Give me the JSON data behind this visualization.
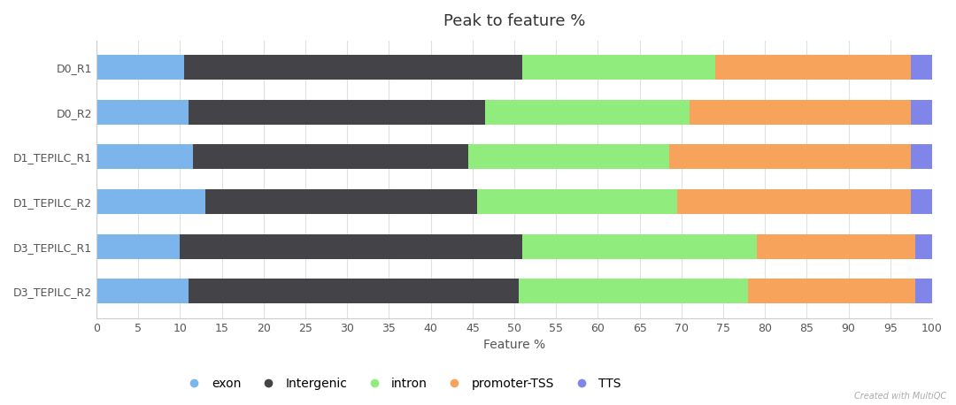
{
  "title": "Peak to feature %",
  "xlabel": "Feature %",
  "categories": [
    "D0_R1",
    "D0_R2",
    "D1_TEPILC_R1",
    "D1_TEPILC_R2",
    "D3_TEPILC_R1",
    "D3_TEPILC_R2"
  ],
  "segments": {
    "exon": [
      10.5,
      11.0,
      11.5,
      13.0,
      10.0,
      11.0
    ],
    "Intergenic": [
      40.5,
      35.5,
      33.0,
      32.5,
      41.0,
      39.5
    ],
    "intron": [
      23.0,
      24.5,
      24.0,
      24.0,
      28.0,
      27.5
    ],
    "promoter-TSS": [
      23.5,
      26.5,
      29.0,
      28.0,
      19.0,
      20.0
    ],
    "TTS": [
      2.5,
      2.5,
      2.5,
      2.5,
      2.0,
      2.0
    ]
  },
  "colors": {
    "exon": "#7cb5ec",
    "Intergenic": "#434348",
    "intron": "#90ed7d",
    "promoter-TSS": "#f7a35c",
    "TTS": "#8085e9"
  },
  "xlim": [
    0,
    100
  ],
  "xticks": [
    0,
    5,
    10,
    15,
    20,
    25,
    30,
    35,
    40,
    45,
    50,
    55,
    60,
    65,
    70,
    75,
    80,
    85,
    90,
    95,
    100
  ],
  "background_color": "#ffffff",
  "plot_bg_color": "#ffffff",
  "grid_color": "#e0e0e0",
  "title_fontsize": 13,
  "axis_fontsize": 10,
  "tick_fontsize": 9,
  "legend_fontsize": 10,
  "bar_height": 0.55,
  "watermark": "Created with MultiQC"
}
